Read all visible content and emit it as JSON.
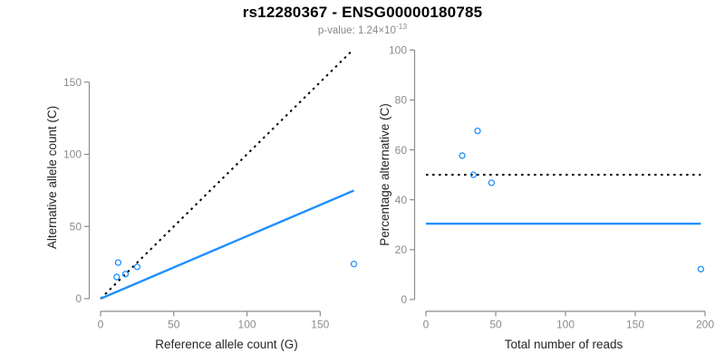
{
  "header": {
    "title": "rs12280367 - ENSG00000180785",
    "subtitle_base": "p-value: 1.24×10",
    "subtitle_exponent": "-13",
    "subtitle_full": "p-value: 1.24×10^-13"
  },
  "colors": {
    "accent_blue": "#1E90FF",
    "axis_gray": "#8C8C8C",
    "tick_label_gray": "#8C8C8C",
    "axis_title_dark": "#262626",
    "reference_line_black": "#000000"
  },
  "chart_data": [
    {
      "type": "scatter",
      "panel": "left",
      "xlabel": "Reference allele count (G)",
      "ylabel": "Alternative allele count (C)",
      "xticks": [
        0,
        50,
        100,
        150
      ],
      "yticks": [
        0,
        50,
        100,
        150
      ],
      "xlim": [
        0,
        175
      ],
      "ylim": [
        0,
        175
      ],
      "grid": false,
      "legend": null,
      "point_color": "#1E90FF",
      "points": [
        {
          "x": 12,
          "y": 25
        },
        {
          "x": 11,
          "y": 15
        },
        {
          "x": 17,
          "y": 17
        },
        {
          "x": 25,
          "y": 22
        },
        {
          "x": 173,
          "y": 24
        }
      ],
      "lines": [
        {
          "name": "identity-line",
          "style": "dotted",
          "color": "#000000",
          "x1": 0,
          "y1": 0,
          "x2": 172,
          "y2": 172
        },
        {
          "name": "fit-line",
          "style": "solid",
          "color": "#1E90FF",
          "x1": 0,
          "y1": 0,
          "x2": 173,
          "y2": 74.9
        }
      ]
    },
    {
      "type": "scatter",
      "panel": "right",
      "xlabel": "Total number of reads",
      "ylabel": "Percentage alternative (C)",
      "xticks": [
        0,
        50,
        100,
        150,
        200
      ],
      "yticks": [
        0,
        20,
        40,
        60,
        80,
        100
      ],
      "xlim": [
        0,
        200
      ],
      "ylim": [
        0,
        100
      ],
      "grid": false,
      "legend": null,
      "point_color": "#1E90FF",
      "points": [
        {
          "x": 37,
          "y": 67.6
        },
        {
          "x": 26,
          "y": 57.7
        },
        {
          "x": 34,
          "y": 50
        },
        {
          "x": 47,
          "y": 46.8
        },
        {
          "x": 197,
          "y": 12.2
        }
      ],
      "lines": [
        {
          "name": "fifty-percent-line",
          "style": "dotted",
          "color": "#000000",
          "x1": 0,
          "y1": 50,
          "x2": 197,
          "y2": 50
        },
        {
          "name": "mean-percentage-line",
          "style": "solid",
          "color": "#1E90FF",
          "x1": 0,
          "y1": 30.4,
          "x2": 197,
          "y2": 30.4
        }
      ]
    }
  ]
}
